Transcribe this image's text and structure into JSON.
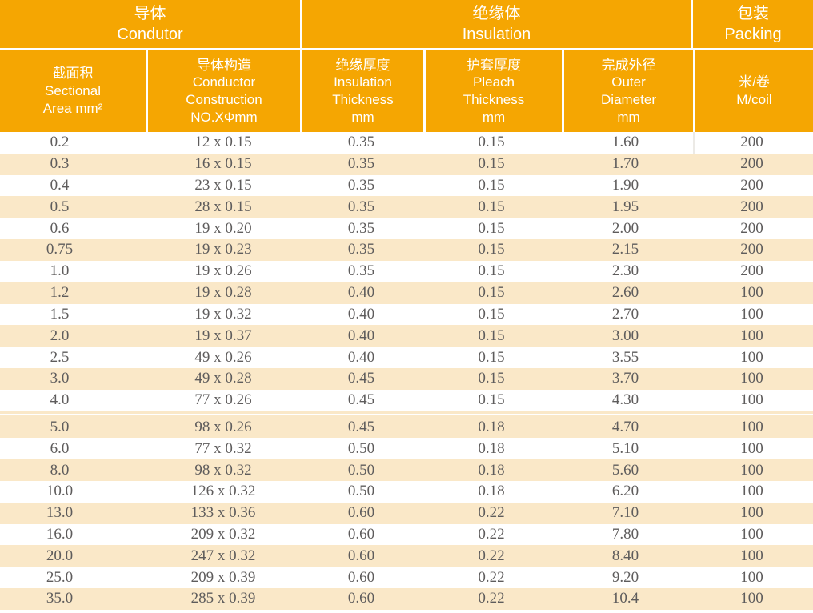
{
  "colors": {
    "header_orange": "#F5A602",
    "stripe_cream": "#FAE8C8",
    "data_text": "#5E5C5C",
    "header_text": "#FFFFFF"
  },
  "table": {
    "groups": [
      {
        "key": "conductor",
        "lines": [
          "导体",
          "Condutor"
        ]
      },
      {
        "key": "insulation",
        "lines": [
          "绝缘体",
          "Insulation"
        ]
      },
      {
        "key": "packing",
        "lines": [
          "包装",
          "Packing"
        ]
      }
    ],
    "columns": [
      {
        "key": "sectional-area",
        "lines": [
          "截面积",
          "Sectional",
          "Area mm²"
        ]
      },
      {
        "key": "conductor-construction",
        "lines": [
          "导体构造",
          "Conductor",
          "Construction",
          "NO.XΦmm"
        ]
      },
      {
        "key": "insulation-thickness",
        "lines": [
          "绝缘厚度",
          "Insulation",
          "Thickness",
          "mm"
        ]
      },
      {
        "key": "pleach-thickness",
        "lines": [
          "护套厚度",
          "Pleach",
          "Thickness",
          "mm"
        ]
      },
      {
        "key": "outer-diameter",
        "lines": [
          "完成外径",
          "Outer",
          "Diameter",
          "mm"
        ]
      },
      {
        "key": "m-per-coil",
        "lines": [
          "米/卷",
          "M/coil"
        ]
      }
    ],
    "rows": [
      [
        "0.2",
        "12 x 0.15",
        "0.35",
        "0.15",
        "1.60",
        "200"
      ],
      [
        "0.3",
        "16 x 0.15",
        "0.35",
        "0.15",
        "1.70",
        "200"
      ],
      [
        "0.4",
        "23 x 0.15",
        "0.35",
        "0.15",
        "1.90",
        "200"
      ],
      [
        "0.5",
        "28 x 0.15",
        "0.35",
        "0.15",
        "1.95",
        "200"
      ],
      [
        "0.6",
        "19 x 0.20",
        "0.35",
        "0.15",
        "2.00",
        "200"
      ],
      [
        "0.75",
        "19 x 0.23",
        "0.35",
        "0.15",
        "2.15",
        "200"
      ],
      [
        "1.0",
        "19 x 0.26",
        "0.35",
        "0.15",
        "2.30",
        "200"
      ],
      [
        "1.2",
        "19 x 0.28",
        "0.40",
        "0.15",
        "2.60",
        "100"
      ],
      [
        "1.5",
        "19 x 0.32",
        "0.40",
        "0.15",
        "2.70",
        "100"
      ],
      [
        "2.0",
        "19 x 0.37",
        "0.40",
        "0.15",
        "3.00",
        "100"
      ],
      [
        "2.5",
        "49 x 0.26",
        "0.40",
        "0.15",
        "3.55",
        "100"
      ],
      [
        "3.0",
        "49 x 0.28",
        "0.45",
        "0.15",
        "3.70",
        "100"
      ],
      [
        "4.0",
        "77 x 0.26",
        "0.45",
        "0.15",
        "4.30",
        "100"
      ],
      [
        "5.0",
        "98 x 0.26",
        "0.45",
        "0.18",
        "4.70",
        "100"
      ],
      [
        "6.0",
        "77 x 0.32",
        "0.50",
        "0.18",
        "5.10",
        "100"
      ],
      [
        "8.0",
        "98 x 0.32",
        "0.50",
        "0.18",
        "5.60",
        "100"
      ],
      [
        "10.0",
        "126 x 0.32",
        "0.50",
        "0.18",
        "6.20",
        "100"
      ],
      [
        "13.0",
        "133 x 0.36",
        "0.60",
        "0.22",
        "7.10",
        "100"
      ],
      [
        "16.0",
        "209 x 0.32",
        "0.60",
        "0.22",
        "7.80",
        "100"
      ],
      [
        "20.0",
        "247 x 0.32",
        "0.60",
        "0.22",
        "8.40",
        "100"
      ],
      [
        "25.0",
        "209 x 0.39",
        "0.60",
        "0.22",
        "9.20",
        "100"
      ],
      [
        "35.0",
        "285 x 0.39",
        "0.60",
        "0.22",
        "10.4",
        "100"
      ]
    ],
    "page_split_after_row": 12
  }
}
